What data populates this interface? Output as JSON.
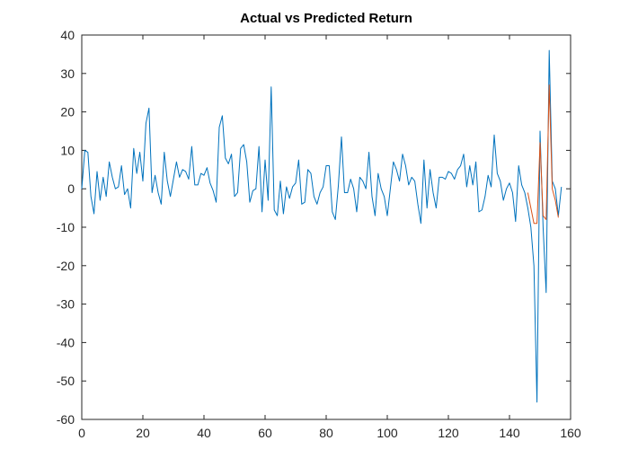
{
  "chart_data": {
    "type": "line",
    "title": "Actual vs Predicted Return",
    "xlim": [
      0,
      160
    ],
    "xticks": [
      0,
      20,
      40,
      60,
      80,
      100,
      120,
      140,
      160
    ],
    "ylim": [
      -60,
      40
    ],
    "yticks": [
      -60,
      -50,
      -40,
      -30,
      -20,
      -10,
      0,
      10,
      20,
      30,
      40
    ],
    "series": [
      {
        "color": "#0072bd",
        "x": [
          0,
          1,
          2,
          3,
          4,
          5,
          6,
          7,
          8,
          9,
          10,
          11,
          12,
          13,
          14,
          15,
          16,
          17,
          18,
          19,
          20,
          21,
          22,
          23,
          24,
          25,
          26,
          27,
          28,
          29,
          30,
          31,
          32,
          33,
          34,
          35,
          36,
          37,
          38,
          39,
          40,
          41,
          42,
          43,
          44,
          45,
          46,
          47,
          48,
          49,
          50,
          51,
          52,
          53,
          54,
          55,
          56,
          57,
          58,
          59,
          60,
          61,
          62,
          63,
          64,
          65,
          66,
          67,
          68,
          69,
          70,
          71,
          72,
          73,
          74,
          75,
          76,
          77,
          78,
          79,
          80,
          81,
          82,
          83,
          84,
          85,
          86,
          87,
          88,
          89,
          90,
          91,
          92,
          93,
          94,
          95,
          96,
          97,
          98,
          99,
          100,
          101,
          102,
          103,
          104,
          105,
          106,
          107,
          108,
          109,
          110,
          111,
          112,
          113,
          114,
          115,
          116,
          117,
          118,
          119,
          120,
          121,
          122,
          123,
          124,
          125,
          126,
          127,
          128,
          129,
          130,
          131,
          132,
          133,
          134,
          135,
          136,
          137,
          138,
          139,
          140,
          141,
          142,
          143,
          144,
          145,
          146,
          147,
          148,
          149,
          150,
          151,
          152,
          153,
          154,
          155,
          156,
          157
        ],
        "values": [
          0,
          10,
          9.5,
          -2,
          -6.5,
          4.5,
          -3,
          3,
          -2,
          7,
          3,
          0,
          0.5,
          6,
          -1.5,
          0,
          -5,
          10.5,
          4,
          9.5,
          2,
          17,
          21,
          -1,
          3.5,
          -1,
          -4,
          9.5,
          2,
          -2,
          2.5,
          7,
          3,
          5,
          4.5,
          2.5,
          11,
          1,
          1,
          4,
          3.5,
          5.5,
          1.5,
          -0.5,
          -3.5,
          16,
          19,
          8,
          6.5,
          9,
          -2,
          -1,
          10.5,
          11.5,
          7,
          -3.5,
          -0.5,
          0,
          11,
          -6,
          7.5,
          -3,
          26.5,
          -5.5,
          -7,
          2,
          -6.5,
          0.5,
          -2.5,
          0.5,
          1.5,
          7.5,
          -4,
          -3.5,
          5,
          4,
          -2,
          -4,
          -1,
          0.5,
          6,
          6,
          -6,
          -8,
          1,
          13.5,
          -1,
          -1,
          2.5,
          0,
          -6,
          3,
          2,
          0,
          9.5,
          -2,
          -7,
          4,
          0,
          -2,
          -7,
          0,
          7,
          5,
          2,
          9,
          6,
          1,
          3,
          2,
          -4,
          -9,
          7.5,
          -5,
          5,
          -1,
          -5,
          3,
          3,
          2.5,
          4.5,
          4,
          2.5,
          5,
          6,
          9,
          0.5,
          6,
          1,
          7,
          -6,
          -5.5,
          -2,
          3.5,
          0.5,
          14,
          4,
          2,
          -3,
          0,
          1.5,
          -1,
          -8.5,
          6,
          1,
          -1,
          -5,
          -10,
          -20,
          -55.5,
          15,
          -10,
          -27,
          36,
          2,
          0,
          -7,
          0.5
        ]
      },
      {
        "color": "#d95319",
        "x": [
          146,
          147,
          148,
          149,
          150,
          151,
          152,
          153,
          154,
          155,
          156
        ],
        "values": [
          -1,
          -5,
          -9,
          -9,
          12,
          -7,
          -8,
          27,
          0,
          -3,
          -7.5
        ]
      }
    ]
  }
}
